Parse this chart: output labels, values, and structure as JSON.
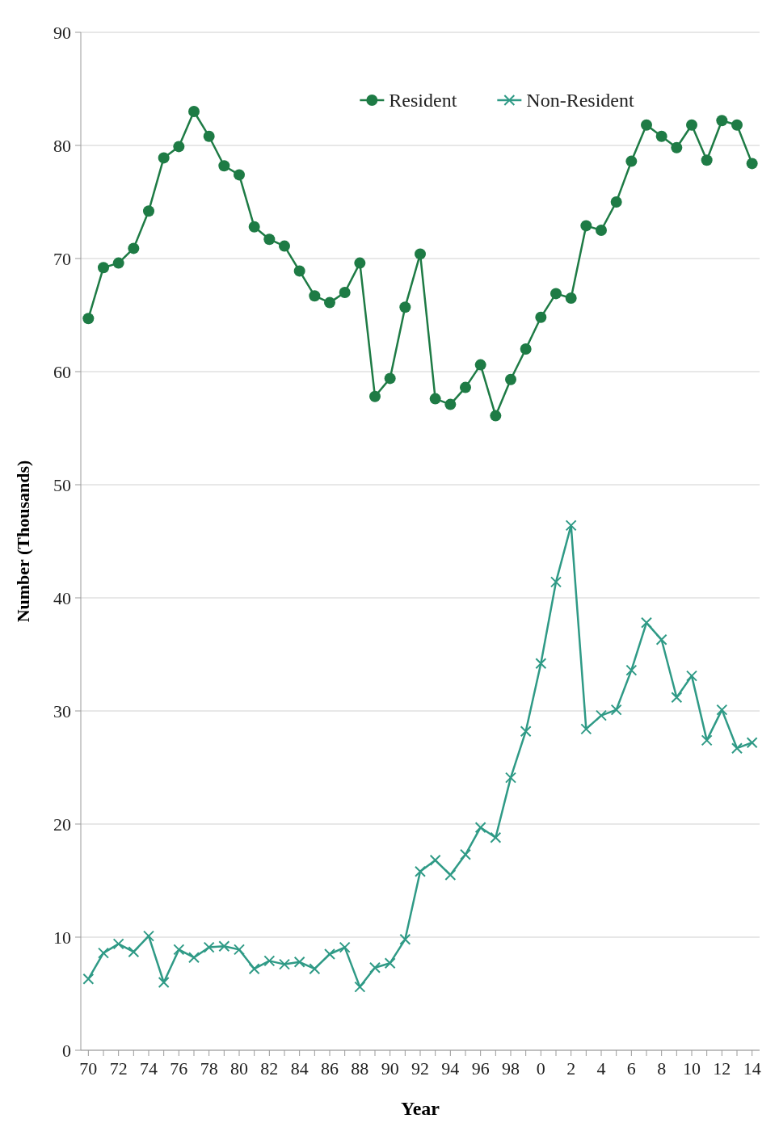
{
  "chart_data": {
    "type": "line",
    "xlabel": "Year",
    "ylabel": "Number (Thousands)",
    "categories": [
      "70",
      null,
      "72",
      null,
      "74",
      null,
      "76",
      null,
      "78",
      null,
      "80",
      null,
      "82",
      null,
      "84",
      null,
      "86",
      null,
      "88",
      null,
      "90",
      null,
      "92",
      null,
      "94",
      null,
      "96",
      null,
      "98",
      null,
      "0",
      null,
      "2",
      null,
      "4",
      null,
      "6",
      null,
      "8",
      null,
      "10",
      null,
      "12",
      null,
      "14"
    ],
    "series": [
      {
        "name": "Resident",
        "color": "#1e7b45",
        "marker": "circle",
        "values": [
          64.7,
          69.2,
          69.6,
          70.9,
          74.2,
          78.9,
          79.9,
          83.0,
          80.8,
          78.2,
          77.4,
          72.8,
          71.7,
          71.1,
          68.9,
          66.7,
          66.1,
          67.0,
          69.6,
          57.8,
          59.4,
          65.7,
          70.4,
          57.6,
          57.1,
          58.6,
          60.6,
          56.1,
          59.3,
          62.0,
          64.8,
          66.9,
          66.5,
          72.9,
          72.5,
          75.0,
          78.6,
          81.8,
          80.8,
          79.8,
          81.8,
          78.7,
          82.2,
          81.8,
          78.4
        ]
      },
      {
        "name": "Non-Resident",
        "color": "#2f9a86",
        "marker": "cross",
        "values": [
          6.3,
          8.6,
          9.4,
          8.7,
          10.1,
          6.0,
          8.9,
          8.2,
          9.1,
          9.2,
          8.9,
          7.2,
          7.9,
          7.6,
          7.8,
          7.2,
          8.5,
          9.1,
          5.6,
          7.3,
          7.7,
          9.8,
          15.8,
          16.8,
          15.5,
          17.3,
          19.7,
          18.8,
          24.1,
          28.2,
          34.2,
          41.4,
          46.4,
          28.4,
          29.6,
          30.1,
          33.6,
          37.8,
          36.3,
          31.2,
          33.1,
          27.4,
          30.1,
          26.7,
          27.2
        ]
      }
    ],
    "ylim": [
      0,
      90
    ],
    "yticks": [
      0,
      10,
      20,
      30,
      40,
      50,
      60,
      70,
      80,
      90
    ],
    "grid": "y",
    "legend": "top"
  }
}
